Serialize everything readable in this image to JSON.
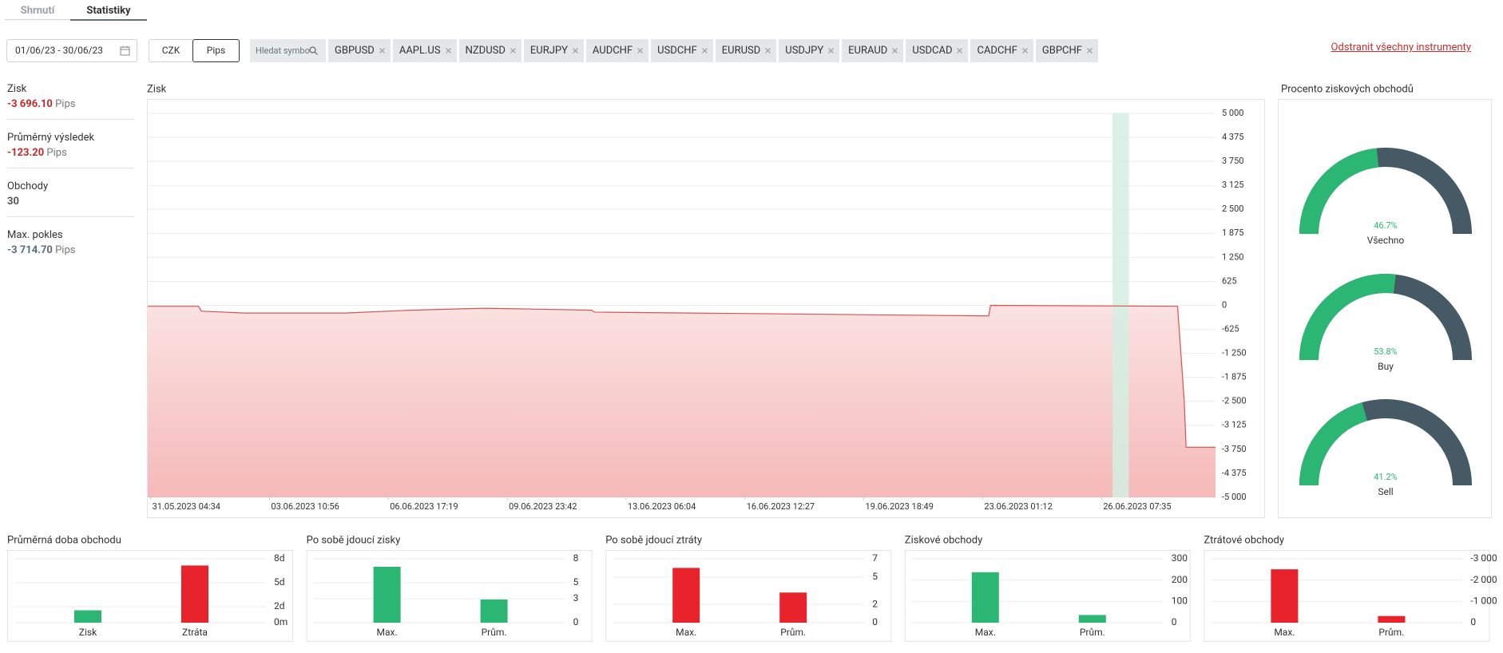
{
  "tabs": [
    "Shrnutí",
    "Statistiky"
  ],
  "date_range": "01/06/23 - 30/06/23",
  "units": [
    "CZK",
    "Pips"
  ],
  "search_placeholder": "Hledat symbo",
  "instruments": [
    "GBPUSD",
    "AAPL.US",
    "NZDUSD",
    "EURJPY",
    "AUDCHF",
    "USDCHF",
    "EURUSD",
    "USDJPY",
    "EURAUD",
    "USDCAD",
    "CADCHF",
    "GBPCHF"
  ],
  "remove_all": "Odstranit všechny instrumenty",
  "stats": [
    {
      "label": "Zisk",
      "value": "-3 696.10",
      "unit": "Pips"
    },
    {
      "label": "Průměrný výsledek",
      "value": "-123.20",
      "unit": "Pips"
    },
    {
      "label": "Obchody",
      "value": "30"
    },
    {
      "label": "Max. pokles",
      "value": "-3 714.70",
      "unit": "Pips"
    }
  ],
  "profit_chart": {
    "type": "area",
    "title": "Zisk",
    "x": [
      "31.05.2023 02:40",
      "01.06.2023 12:10",
      "01.06.2023 14:05",
      "02.06.2023 18:30",
      "05.06.2023 12:52",
      "07.06.2023 09:04",
      "09.06.2023 08:28",
      "10.06.2023 19:16",
      "12.06.2023 07:16",
      "12.06.2023 09:10",
      "23.06.2023 05:10",
      "23.06.2023 06:28",
      "28.06.2023 09:46",
      "28.06.2023 14:10",
      "28.06.2023 15:22",
      "29.06.2023 10:46"
    ],
    "values": [
      -25,
      -25,
      -150,
      -200,
      -200,
      -125,
      -75,
      -100,
      -125,
      -175,
      -275,
      0,
      -25,
      -2500,
      -3696.1,
      -3696.1
    ],
    "color": "#d9534f",
    "fill_colors": [
      "#fbe2e2",
      "#f5b9b9"
    ],
    "highlight": [
      "26.06.2023 14:52",
      "27.06.2023 01:36"
    ],
    "highlight_color": "#d3efe2",
    "xlim": [
      "31.05.2023 02:40",
      "29.06.2023 10:46"
    ],
    "xticks": [
      "31.05.2023 04:34",
      "03.06.2023 10:56",
      "06.06.2023 17:19",
      "09.06.2023 23:42",
      "13.06.2023 06:04",
      "16.06.2023 12:27",
      "19.06.2023 18:49",
      "23.06.2023 01:12",
      "26.06.2023 07:35"
    ],
    "ylim": [
      -5000,
      5000
    ],
    "yticks": [
      {
        "value": 5000,
        "label": "5 000"
      },
      {
        "value": 4375,
        "label": "4 375"
      },
      {
        "value": 3750,
        "label": "3 750"
      },
      {
        "value": 3125,
        "label": "3 125"
      },
      {
        "value": 2500,
        "label": "2 500"
      },
      {
        "value": 1875,
        "label": "1 875"
      },
      {
        "value": 1250,
        "label": "1 250"
      },
      625,
      0,
      -625,
      {
        "value": -1250,
        "label": "-1 250"
      },
      {
        "value": -1875,
        "label": "-1 875"
      },
      {
        "value": -2500,
        "label": "-2 500"
      },
      {
        "value": -3125,
        "label": "-3 125"
      },
      {
        "value": -3750,
        "label": "-3 750"
      },
      {
        "value": -4375,
        "label": "-4 375"
      },
      {
        "value": -5000,
        "label": "-5 000"
      }
    ],
    "grid": true
  },
  "win_rate": {
    "type": "gauge",
    "title": "Procento ziskových obchodů",
    "categories": [
      "Všechno",
      "Buy",
      "Sell"
    ],
    "values": [
      46.7,
      53.8,
      41.2
    ],
    "value_labels": [
      "46.7%",
      "53.8%",
      "41.2%"
    ],
    "ylim": [
      0,
      100
    ],
    "color": "#2bb673",
    "track_color": "#455a64"
  },
  "small_charts": [
    {
      "type": "bar",
      "title": "Průměrná doba obchodu",
      "categories": [
        "Zisk",
        "Ztráta"
      ],
      "values": [
        1.55,
        7.16
      ],
      "colors": [
        "#2bb673",
        "#e8232b"
      ],
      "ylim": [
        0,
        8
      ],
      "yticks": [
        {
          "value": 8,
          "label": "8d"
        },
        {
          "value": 5,
          "label": "5d"
        },
        {
          "value": 2,
          "label": "2d"
        },
        {
          "value": 0,
          "label": "0m"
        }
      ],
      "grid": true
    },
    {
      "type": "bar",
      "title": "Po sobě jdoucí zisky",
      "categories": [
        "Max.",
        "Prům."
      ],
      "values": [
        7,
        2.9
      ],
      "colors": [
        "#2bb673",
        "#2bb673"
      ],
      "ylim": [
        0,
        8
      ],
      "yticks": [
        8,
        5,
        3,
        0
      ],
      "grid": true
    },
    {
      "type": "bar",
      "title": "Po sobě jdoucí ztráty",
      "categories": [
        "Max.",
        "Prům."
      ],
      "values": [
        6,
        3.3
      ],
      "colors": [
        "#e8232b",
        "#e8232b"
      ],
      "ylim": [
        0,
        7
      ],
      "yticks": [
        7,
        5,
        2,
        0
      ],
      "grid": true
    },
    {
      "type": "bar",
      "title": "Ziskové obchody",
      "categories": [
        "Max.",
        "Prům."
      ],
      "values": [
        237,
        36
      ],
      "colors": [
        "#2bb673",
        "#2bb673"
      ],
      "ylim": [
        0,
        300
      ],
      "yticks": [
        300,
        200,
        100,
        0
      ],
      "grid": true
    },
    {
      "type": "bar",
      "title": "Ztrátové obchody",
      "categories": [
        "Max.",
        "Prům."
      ],
      "values": [
        -2507,
        -313
      ],
      "colors": [
        "#e8232b",
        "#e8232b"
      ],
      "ylim": [
        0,
        -3000
      ],
      "yticks": [
        {
          "value": -3000,
          "label": "-3 000"
        },
        {
          "value": -2000,
          "label": "-2 000"
        },
        {
          "value": -1000,
          "label": "-1 000"
        },
        0
      ],
      "grid": true
    }
  ]
}
